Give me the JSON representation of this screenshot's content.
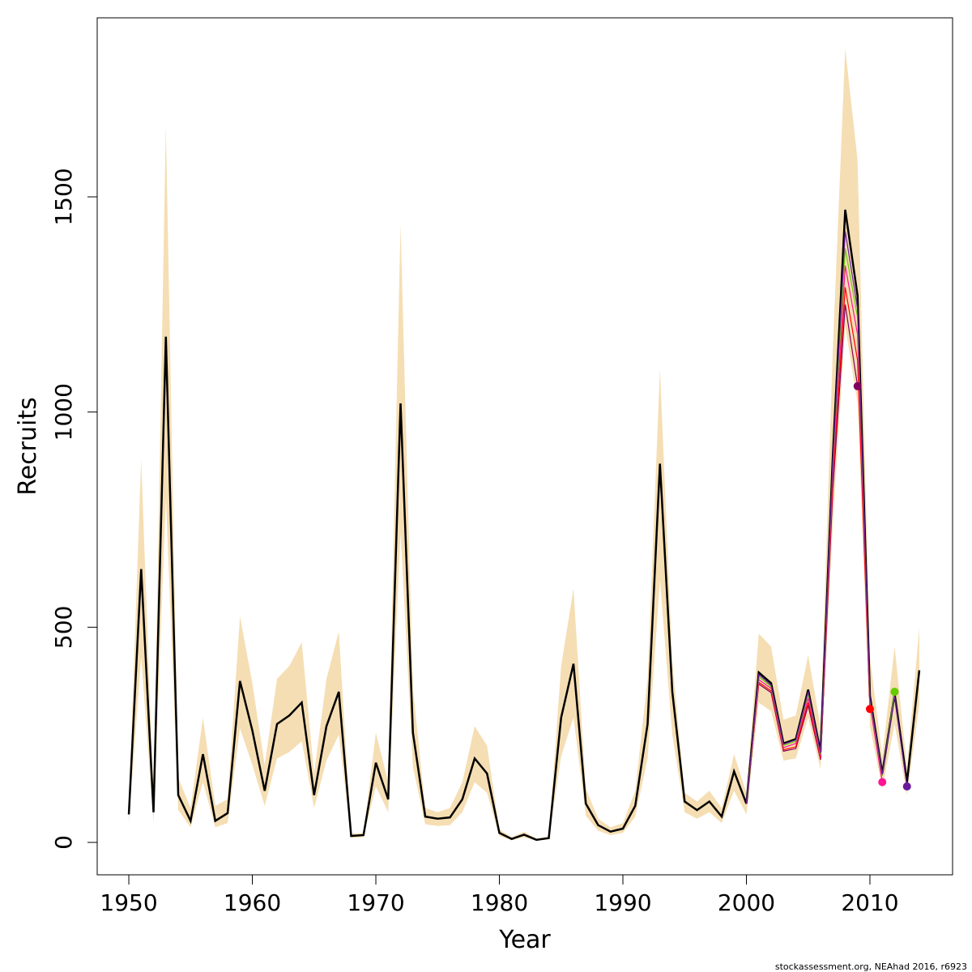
{
  "chart_data": {
    "type": "line",
    "xlabel": "Year",
    "ylabel": "Recruits",
    "footer": "stockassessment.org, NEAhad 2016, r6923",
    "xlim": [
      1947.44,
      2016.69
    ],
    "ylim": [
      -75.3,
      1916
    ],
    "xticks": [
      1950,
      1960,
      1970,
      1980,
      1990,
      2000,
      2010
    ],
    "yticks": [
      0,
      500,
      1000,
      1500
    ],
    "x": [
      1950,
      1951,
      1952,
      1953,
      1954,
      1955,
      1956,
      1957,
      1958,
      1959,
      1960,
      1961,
      1962,
      1963,
      1964,
      1965,
      1966,
      1967,
      1968,
      1969,
      1970,
      1971,
      1972,
      1973,
      1974,
      1975,
      1976,
      1977,
      1978,
      1979,
      1980,
      1981,
      1982,
      1983,
      1984,
      1985,
      1986,
      1987,
      1988,
      1989,
      1990,
      1991,
      1992,
      1993,
      1994,
      1995,
      1996,
      1997,
      1998,
      1999,
      2000,
      2001,
      2002,
      2003,
      2004,
      2005,
      2006,
      2007,
      2008,
      2009,
      2010,
      2011,
      2012,
      2013,
      2014
    ],
    "band": {
      "color": "#f5deb3",
      "upper": [
        80,
        890,
        100,
        1665,
        150,
        80,
        290,
        85,
        100,
        525,
        370,
        180,
        380,
        410,
        465,
        160,
        380,
        490,
        20,
        22,
        255,
        140,
        1435,
        360,
        80,
        70,
        80,
        140,
        270,
        225,
        30,
        12,
        25,
        9,
        14,
        410,
        590,
        125,
        55,
        35,
        45,
        120,
        380,
        1100,
        420,
        115,
        95,
        120,
        80,
        205,
        115,
        485,
        455,
        285,
        295,
        435,
        270,
        1150,
        1845,
        1585,
        430,
        200,
        455,
        175,
        500
      ],
      "lower": [
        45,
        430,
        45,
        800,
        75,
        35,
        140,
        35,
        45,
        265,
        180,
        85,
        195,
        210,
        235,
        80,
        190,
        250,
        10,
        12,
        130,
        70,
        720,
        175,
        42,
        38,
        40,
        70,
        140,
        115,
        15,
        5,
        12,
        4,
        7,
        200,
        290,
        62,
        27,
        17,
        22,
        60,
        195,
        610,
        250,
        70,
        55,
        70,
        45,
        120,
        65,
        325,
        305,
        190,
        195,
        290,
        170,
        740,
        1200,
        1020,
        270,
        125,
        275,
        110,
        320
      ]
    },
    "values": [
      65,
      635,
      70,
      1175,
      110,
      50,
      205,
      50,
      68,
      375,
      260,
      120,
      275,
      295,
      325,
      110,
      270,
      350,
      15,
      17,
      185,
      100,
      1020,
      255,
      60,
      55,
      58,
      100,
      195,
      160,
      22,
      8,
      18,
      6,
      10,
      290,
      415,
      90,
      40,
      25,
      32,
      85,
      275,
      880,
      350,
      95,
      75,
      95,
      60,
      165,
      90,
      395,
      370,
      230,
      240,
      355,
      210,
      900,
      1470,
      1270,
      340,
      160,
      345,
      140,
      400
    ],
    "color": "#000000",
    "peels": [
      {
        "color": "#800060",
        "x": [
          2000,
          2001,
          2002,
          2003,
          2004,
          2005,
          2006,
          2007,
          2008,
          2009
        ],
        "values": [
          90,
          368,
          348,
          212,
          218,
          318,
          192,
          820,
          1250,
          1060
        ]
      },
      {
        "color": "#ff0000",
        "x": [
          2000,
          2001,
          2002,
          2003,
          2004,
          2005,
          2006,
          2007,
          2008,
          2009,
          2010
        ],
        "values": [
          90,
          372,
          352,
          215,
          222,
          325,
          195,
          840,
          1290,
          1120,
          310
        ]
      },
      {
        "color": "#ff1493",
        "x": [
          2000,
          2001,
          2002,
          2003,
          2004,
          2005,
          2006,
          2007,
          2008,
          2009,
          2010,
          2011
        ],
        "values": [
          90,
          378,
          358,
          220,
          230,
          335,
          200,
          860,
          1340,
          1180,
          320,
          140
        ]
      },
      {
        "color": "#66cc00",
        "x": [
          2000,
          2001,
          2002,
          2003,
          2004,
          2005,
          2006,
          2007,
          2008,
          2009,
          2010,
          2011,
          2012
        ],
        "values": [
          90,
          385,
          362,
          225,
          235,
          345,
          205,
          880,
          1380,
          1220,
          330,
          155,
          350
        ]
      },
      {
        "color": "#6a1b9a",
        "x": [
          2000,
          2001,
          2002,
          2003,
          2004,
          2005,
          2006,
          2007,
          2008,
          2009,
          2010,
          2011,
          2012,
          2013
        ],
        "values": [
          90,
          390,
          365,
          228,
          238,
          350,
          208,
          890,
          1420,
          1240,
          335,
          158,
          340,
          130
        ]
      }
    ]
  }
}
